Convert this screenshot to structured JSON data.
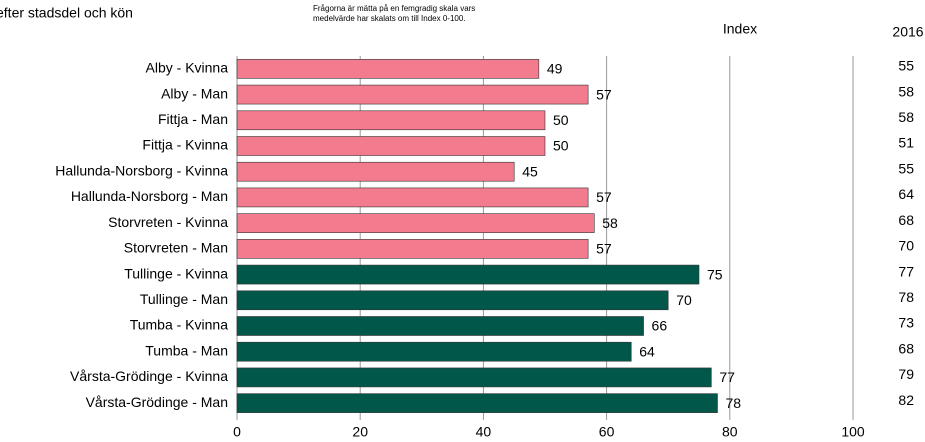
{
  "chart_data": {
    "type": "bar",
    "orientation": "horizontal",
    "title": "efter stadsdel och kön",
    "annotations": [
      "Frågorna är mätta på en femgradig skala vars",
      "medelvärde har skalats om till Index 0-100."
    ],
    "categories": [
      "Alby - Kvinna",
      "Alby - Man",
      "Fittja -  Man",
      "Fittja - Kvinna",
      "Hallunda-Norsborg - Kvinna",
      "Hallunda-Norsborg - Man",
      "Storvreten - Kvinna",
      "Storvreten - Man",
      "Tullinge - Kvinna",
      "Tullinge - Man",
      "Tumba - Kvinna",
      "Tumba - Man",
      "Vårsta-Grödinge - Kvinna",
      "Vårsta-Grödinge - Man"
    ],
    "series": [
      {
        "name": "Index",
        "values": [
          49,
          57,
          50,
          50,
          45,
          57,
          58,
          57,
          75,
          70,
          66,
          64,
          77,
          78
        ],
        "colors": [
          "#f27b8e",
          "#f27b8e",
          "#f27b8e",
          "#f27b8e",
          "#f27b8e",
          "#f27b8e",
          "#f27b8e",
          "#f27b8e",
          "#00574a",
          "#00574a",
          "#00574a",
          "#00574a",
          "#00574a",
          "#00574a"
        ]
      },
      {
        "name": "2016",
        "values": [
          55,
          58,
          58,
          51,
          55,
          64,
          68,
          70,
          77,
          78,
          73,
          68,
          79,
          82
        ]
      }
    ],
    "xlim": [
      0,
      100
    ],
    "xticks": [
      0,
      20,
      40,
      60,
      80,
      100
    ],
    "grid": true
  }
}
